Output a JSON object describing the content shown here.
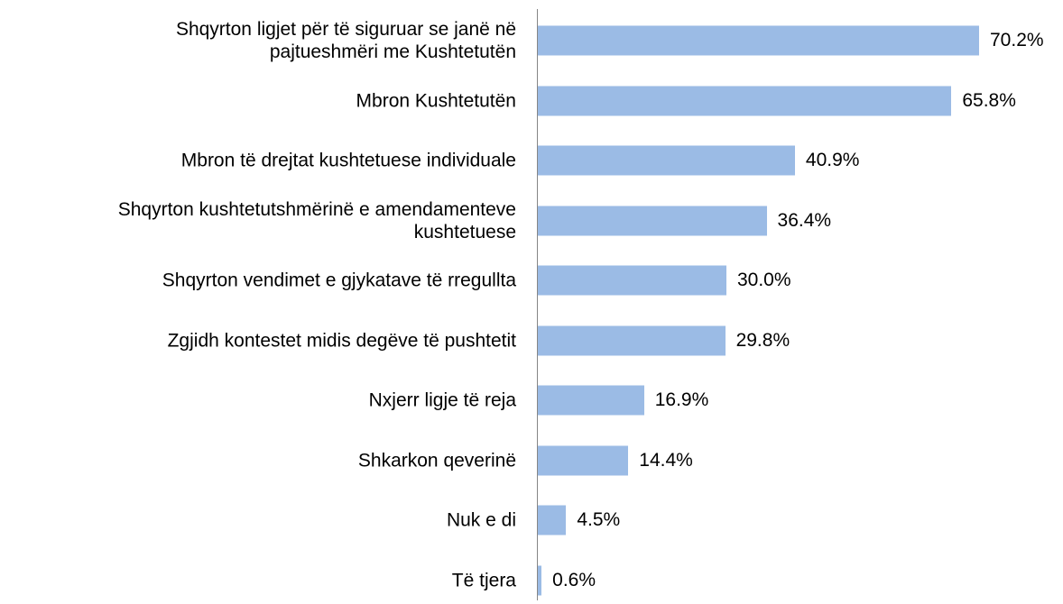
{
  "chart_data": {
    "type": "bar",
    "orientation": "horizontal",
    "categories": [
      "Shqyrton ligjet për të siguruar se janë në\npajtueshmëri me Kushtetutën",
      "Mbron Kushtetutën",
      "Mbron të drejtat kushtetuese individuale",
      "Shqyrton kushtetutshmërinë e amendamenteve\nkushtetuese",
      "Shqyrton vendimet e gjykatave të rregullta",
      "Zgjidh kontestet midis degëve të pushtetit",
      "Nxjerr ligje të reja",
      "Shkarkon qeverinë",
      "Nuk e di",
      "Të tjera"
    ],
    "values": [
      70.2,
      65.8,
      40.9,
      36.4,
      30.0,
      29.8,
      16.9,
      14.4,
      4.5,
      0.6
    ],
    "value_labels": [
      "70.2%",
      "65.8%",
      "40.9%",
      "36.4%",
      "30.0%",
      "29.8%",
      "16.9%",
      "14.4%",
      "4.5%",
      "0.6%"
    ],
    "color": "#9bbbe5"
  }
}
